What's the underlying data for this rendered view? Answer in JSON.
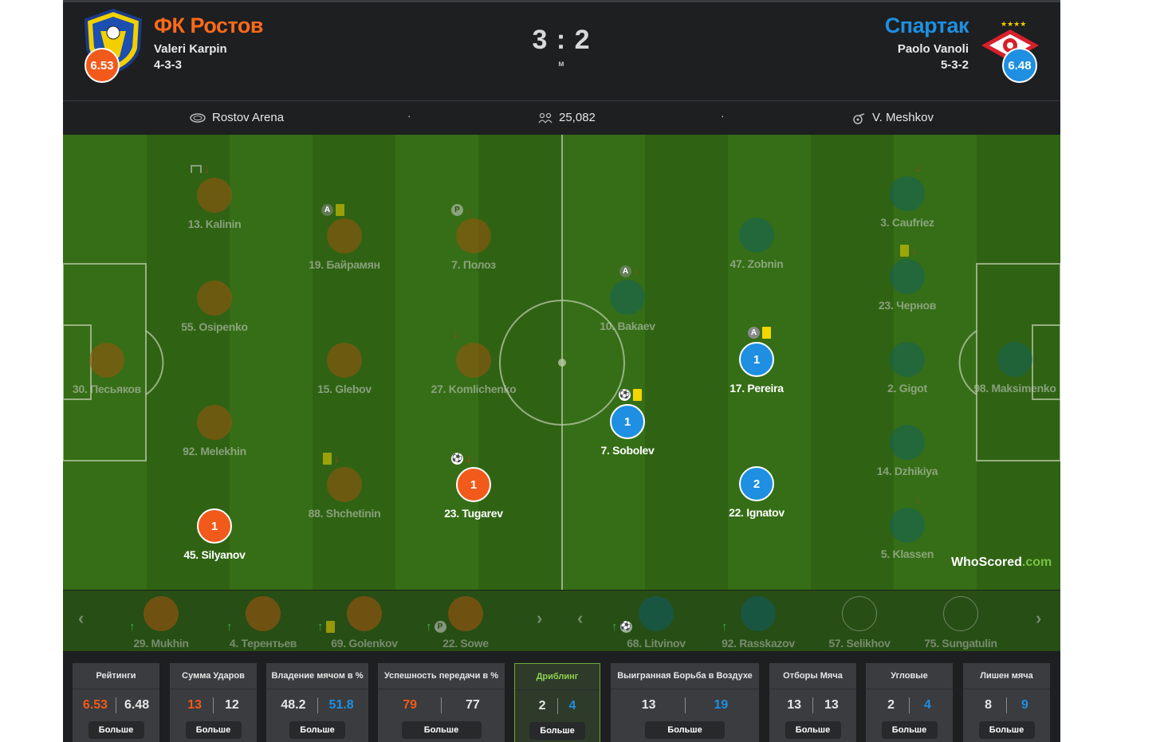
{
  "header": {
    "home": {
      "name": "ФК Ростов",
      "coach": "Valeri Karpin",
      "formation": "4-3-3",
      "rating": "6.53",
      "color": "#f25a1b"
    },
    "away": {
      "name": "Спартак",
      "coach": "Paolo Vanoli",
      "formation": "5-3-2",
      "rating": "6.48",
      "color": "#1e8fe1"
    },
    "score": "3 : 2",
    "status": "м"
  },
  "info": {
    "venue": "Rostov Arena",
    "attendance": "25,082",
    "referee": "V. Meshkov"
  },
  "home_players": [
    {
      "num_name": "13. Kalinin",
      "rating": "",
      "active": false
    },
    {
      "num_name": "55. Osipenko",
      "rating": "",
      "active": false
    },
    {
      "num_name": "30. Песьяков",
      "rating": "",
      "active": false
    },
    {
      "num_name": "92. Melekhin",
      "rating": "",
      "active": false
    },
    {
      "num_name": "45. Silyanov",
      "rating": "1",
      "active": true
    },
    {
      "num_name": "19. Байрамян",
      "rating": "",
      "active": false
    },
    {
      "num_name": "15. Glebov",
      "rating": "",
      "active": false
    },
    {
      "num_name": "88. Shchetinin",
      "rating": "",
      "active": false
    },
    {
      "num_name": "7. Полоз",
      "rating": "",
      "active": false
    },
    {
      "num_name": "27. Komlichenko",
      "rating": "",
      "active": false
    },
    {
      "num_name": "23. Tugarev",
      "rating": "1",
      "active": true
    }
  ],
  "away_players": [
    {
      "num_name": "10. Bakaev",
      "rating": "",
      "active": false
    },
    {
      "num_name": "7. Sobolev",
      "rating": "1",
      "active": true
    },
    {
      "num_name": "47. Zobnin",
      "rating": "",
      "active": false
    },
    {
      "num_name": "17. Pereira",
      "rating": "1",
      "active": true
    },
    {
      "num_name": "22. Ignatov",
      "rating": "2",
      "active": true
    },
    {
      "num_name": "3. Caufriez",
      "rating": "",
      "active": false
    },
    {
      "num_name": "23. Чернов",
      "rating": "",
      "active": false
    },
    {
      "num_name": "2. Gigot",
      "rating": "",
      "active": false
    },
    {
      "num_name": "14. Dzhikiya",
      "rating": "",
      "active": false
    },
    {
      "num_name": "5. Klassen",
      "rating": "",
      "active": false
    },
    {
      "num_name": "98. Maksimenko",
      "rating": "",
      "active": false
    }
  ],
  "icons": {
    "captain": "A",
    "penalty": "P",
    "ball": "⚽",
    "arrow_down": "↓",
    "arrow_up": "↑",
    "prev": "‹",
    "next": "›"
  },
  "watermark": {
    "brand": "WhoScored",
    "suffix": ".com"
  },
  "bench": {
    "home": [
      "29. Mukhin",
      "4. Терентьев",
      "69. Golenkov",
      "22. Sowe"
    ],
    "away": [
      "68. Litvinov",
      "92. Rasskazov",
      "57. Selikhov",
      "75. Sungatulin"
    ]
  },
  "stats": [
    {
      "title": "Рейтинги",
      "home": "6.53",
      "away": "6.48",
      "winner": "home"
    },
    {
      "title": "Сумма Ударов",
      "home": "13",
      "away": "12",
      "winner": "home"
    },
    {
      "title": "Владение мячом в %",
      "home": "48.2",
      "away": "51.8",
      "winner": "away"
    },
    {
      "title": "Успешность передачи в %",
      "home": "79",
      "away": "77",
      "winner": "home"
    },
    {
      "title": "Дриблинг",
      "home": "2",
      "away": "4",
      "winner": "away"
    },
    {
      "title": "Выигранная Борьба в Воздухе",
      "home": "13",
      "away": "19",
      "winner": "away"
    },
    {
      "title": "Отборы Мяча",
      "home": "13",
      "away": "13",
      "winner": "none"
    },
    {
      "title": "Угловые",
      "home": "2",
      "away": "4",
      "winner": "away"
    },
    {
      "title": "Лишен мяча",
      "home": "8",
      "away": "9",
      "winner": "away"
    }
  ],
  "more_label": "Больше"
}
